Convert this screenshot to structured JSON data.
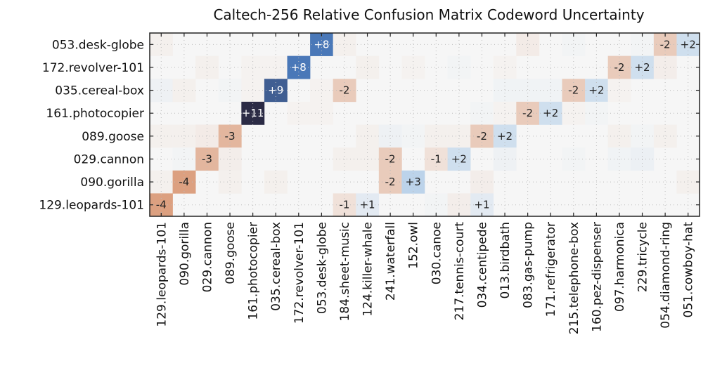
{
  "chart_data": {
    "type": "heatmap",
    "title": "Caltech-256 Relative Confusion Matrix Codeword Uncertainty",
    "rows": [
      "053.desk-globe",
      "172.revolver-101",
      "035.cereal-box",
      "161.photocopier",
      "089.goose",
      "029.cannon",
      "090.gorilla",
      "129.leopards-101"
    ],
    "columns": [
      "129.leopards-101",
      "090.gorilla",
      "029.cannon",
      "089.goose",
      "161.photocopier",
      "035.cereal-box",
      "172.revolver-101",
      "053.desk-globe",
      "184.sheet-music",
      "124.killer-whale",
      "241.waterfall",
      "152.owl",
      "030.canoe",
      "217.tennis-court",
      "034.centipede",
      "013.birdbath",
      "083.gas-pump",
      "171.refrigerator",
      "215.telephone-box",
      "160.pez-dispenser",
      "097.harmonica",
      "229.tricycle",
      "054.diamond-ring",
      "051.cowboy-hat"
    ],
    "values": [
      [
        -0.3,
        0,
        0,
        0,
        0,
        0,
        0,
        8,
        -0.3,
        0,
        0,
        0,
        0,
        0,
        0,
        0,
        -0.5,
        0,
        0.2,
        0,
        0,
        0.2,
        -2,
        2
      ],
      [
        0,
        0,
        -0.3,
        0,
        -0.2,
        -0.2,
        8,
        0,
        0,
        -0.3,
        0,
        -0.2,
        0,
        0.2,
        0,
        -0.2,
        0,
        0,
        0,
        0,
        -2,
        2,
        -0.4,
        0
      ],
      [
        0.4,
        -0.3,
        0,
        0.2,
        -0.2,
        9,
        0,
        -0.2,
        -2,
        0,
        0,
        0,
        0,
        0,
        0,
        0.3,
        0.3,
        0.3,
        -2,
        2,
        -0.2,
        0,
        0,
        0
      ],
      [
        0,
        0,
        0,
        0,
        11,
        0,
        -0.2,
        -0.2,
        0,
        0,
        0,
        0,
        0,
        0,
        0.2,
        -0.2,
        -2,
        2,
        -0.2,
        0.2,
        0,
        0,
        0,
        0
      ],
      [
        -0.3,
        -0.3,
        -0.5,
        -3,
        0,
        0,
        0,
        0,
        0,
        -0.3,
        0.4,
        0.2,
        -0.3,
        -0.3,
        -2,
        2,
        0,
        0,
        0,
        0,
        -0.3,
        0.2,
        -0.3,
        0
      ],
      [
        0,
        0.2,
        -3,
        -0.4,
        0,
        0,
        0,
        0,
        -0.3,
        -0.3,
        -2,
        0,
        -1,
        2,
        0,
        0.4,
        0,
        0,
        0.2,
        0,
        0.3,
        0.5,
        0,
        0
      ],
      [
        -0.3,
        -4,
        0,
        -0.3,
        0,
        -0.3,
        0,
        0,
        0,
        0,
        -2,
        3,
        0,
        0,
        -0.4,
        0,
        0,
        0,
        0,
        0,
        0,
        0,
        0,
        -0.3
      ],
      [
        -4,
        0,
        0,
        0,
        0,
        0,
        0,
        0,
        -1,
        1,
        0,
        0,
        0.2,
        -0.4,
        1,
        0,
        0,
        0,
        0,
        0,
        0,
        0,
        0,
        0
      ]
    ],
    "colormap": "diverging (negative = orange, positive = blue)",
    "annotations": "integer values shown with sign in each non-zero cell",
    "colors": {
      "neg_max": "#dca080",
      "zero": "#f6f6f6",
      "pos_low": "#bcd3ea",
      "pos_mid": "#4a78b8",
      "pos_high": "#2b2b45"
    },
    "grid": true
  }
}
